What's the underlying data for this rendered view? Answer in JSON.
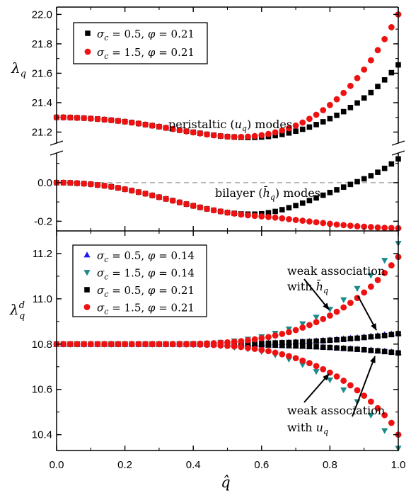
{
  "chart_data": [
    {
      "type": "scatter",
      "panel": "top",
      "ylabel": "λ_q",
      "grid": false,
      "legend_placement": "top-left",
      "y_axis_break": true,
      "x": [
        0.0,
        0.02,
        0.04,
        0.06,
        0.08,
        0.1,
        0.12,
        0.14,
        0.16,
        0.18,
        0.2,
        0.22,
        0.24,
        0.26,
        0.28,
        0.3,
        0.32,
        0.34,
        0.36,
        0.38,
        0.4,
        0.42,
        0.44,
        0.46,
        0.48,
        0.5,
        0.52,
        0.54,
        0.56,
        0.58,
        0.6,
        0.62,
        0.64,
        0.66,
        0.68,
        0.7,
        0.72,
        0.74,
        0.76,
        0.78,
        0.8,
        0.82,
        0.84,
        0.86,
        0.88,
        0.9,
        0.92,
        0.94,
        0.96,
        0.98,
        1.0
      ],
      "upper_segment": {
        "ylim": [
          21.13,
          22.05
        ],
        "ticks": [
          "21.2",
          "21.4",
          "21.6",
          "21.8",
          "22.0"
        ],
        "tick_values": [
          21.2,
          21.4,
          21.6,
          21.8,
          22.0
        ],
        "annotation": "peristaltic (u_q) modes",
        "series": [
          {
            "name": "σ_c = 0.5, φ = 0.21",
            "marker": "square",
            "color": "#000000",
            "values": [
              21.3,
              21.3,
              21.299,
              21.297,
              21.295,
              21.292,
              21.289,
              21.285,
              21.281,
              21.276,
              21.271,
              21.265,
              21.258,
              21.251,
              21.244,
              21.237,
              21.229,
              21.221,
              21.213,
              21.206,
              21.199,
              21.192,
              21.185,
              21.179,
              21.173,
              21.169,
              21.166,
              21.164,
              21.163,
              21.164,
              21.166,
              21.17,
              21.176,
              21.184,
              21.194,
              21.206,
              21.219,
              21.234,
              21.251,
              21.27,
              21.291,
              21.314,
              21.339,
              21.367,
              21.398,
              21.432,
              21.469,
              21.51,
              21.555,
              21.604,
              21.657
            ]
          },
          {
            "name": "σ_c = 1.5, φ = 0.21",
            "marker": "circle",
            "color": "#ee1111",
            "values": [
              21.3,
              21.3,
              21.299,
              21.297,
              21.295,
              21.292,
              21.289,
              21.285,
              21.281,
              21.276,
              21.271,
              21.265,
              21.258,
              21.251,
              21.244,
              21.237,
              21.229,
              21.221,
              21.213,
              21.205,
              21.198,
              21.191,
              21.184,
              21.178,
              21.173,
              21.169,
              21.167,
              21.167,
              21.169,
              21.173,
              21.179,
              21.187,
              21.198,
              21.211,
              21.226,
              21.244,
              21.265,
              21.29,
              21.318,
              21.349,
              21.384,
              21.423,
              21.466,
              21.514,
              21.567,
              21.625,
              21.688,
              21.757,
              21.832,
              21.913,
              22.0
            ]
          }
        ]
      },
      "lower_segment": {
        "ylim": [
          -0.25,
          0.15
        ],
        "ticks": [
          "-0.2",
          "0.0"
        ],
        "tick_values": [
          -0.2,
          0.0
        ],
        "reference_line": 0.0,
        "annotation": "bilayer (h̄_q) modes",
        "series": [
          {
            "name": "σ_c = 0.5, φ = 0.21",
            "marker": "square",
            "color": "#000000",
            "values": [
              0.0,
              0.0,
              -0.001,
              -0.003,
              -0.005,
              -0.008,
              -0.012,
              -0.016,
              -0.021,
              -0.027,
              -0.034,
              -0.041,
              -0.049,
              -0.057,
              -0.066,
              -0.075,
              -0.084,
              -0.093,
              -0.102,
              -0.111,
              -0.12,
              -0.128,
              -0.136,
              -0.143,
              -0.149,
              -0.155,
              -0.159,
              -0.162,
              -0.163,
              -0.163,
              -0.161,
              -0.156,
              -0.149,
              -0.14,
              -0.13,
              -0.119,
              -0.106,
              -0.093,
              -0.079,
              -0.065,
              -0.051,
              -0.037,
              -0.023,
              -0.009,
              0.005,
              0.02,
              0.036,
              0.054,
              0.074,
              0.097,
              0.123
            ]
          },
          {
            "name": "σ_c = 1.5, φ = 0.21",
            "marker": "circle",
            "color": "#ee1111",
            "values": [
              0.0,
              0.0,
              -0.001,
              -0.003,
              -0.005,
              -0.008,
              -0.012,
              -0.016,
              -0.021,
              -0.027,
              -0.034,
              -0.041,
              -0.049,
              -0.057,
              -0.066,
              -0.075,
              -0.084,
              -0.093,
              -0.102,
              -0.111,
              -0.12,
              -0.128,
              -0.136,
              -0.143,
              -0.149,
              -0.155,
              -0.16,
              -0.165,
              -0.169,
              -0.172,
              -0.175,
              -0.178,
              -0.181,
              -0.185,
              -0.189,
              -0.193,
              -0.197,
              -0.201,
              -0.205,
              -0.209,
              -0.213,
              -0.217,
              -0.22,
              -0.223,
              -0.226,
              -0.228,
              -0.23,
              -0.232,
              -0.234,
              -0.235,
              -0.236
            ]
          }
        ]
      }
    },
    {
      "type": "scatter",
      "panel": "bottom",
      "ylabel": "λ_q^d",
      "xlabel": "q̂",
      "grid": false,
      "legend_placement": "top-left",
      "xlim": [
        0.0,
        1.0
      ],
      "xticks": [
        "0.0",
        "0.2",
        "0.4",
        "0.6",
        "0.8",
        "1.0"
      ],
      "xtick_values": [
        0.0,
        0.2,
        0.4,
        0.6,
        0.8,
        1.0
      ],
      "ylim": [
        10.33,
        11.3
      ],
      "yticks": [
        "10.4",
        "10.6",
        "10.8",
        "11.0",
        "11.2"
      ],
      "ytick_values": [
        10.4,
        10.6,
        10.8,
        11.0,
        11.2
      ],
      "annotations": [
        {
          "line1": "weak association",
          "line2_prefix": "with ",
          "line2_symbol": "h̄_q"
        },
        {
          "line1": "weak association",
          "line2_prefix": "with ",
          "line2_symbol": "u_q"
        }
      ],
      "series": [
        {
          "name": "σ_c = 0.5, φ = 0.14",
          "marker": "triangle-up",
          "color": "#1a1aee",
          "x": [
            0.0,
            0.02,
            0.04,
            0.06,
            0.08,
            0.1,
            0.12,
            0.14,
            0.16,
            0.18,
            0.2,
            0.22,
            0.24,
            0.26,
            0.28,
            0.3,
            0.32,
            0.34,
            0.36,
            0.38,
            0.4,
            0.42,
            0.44,
            0.46,
            0.48,
            0.5,
            0.52,
            0.54,
            0.56,
            0.58,
            0.6,
            0.62,
            0.64,
            0.66,
            0.68,
            0.7,
            0.72,
            0.74,
            0.76,
            0.78,
            0.8,
            0.82,
            0.84,
            0.86,
            0.88,
            0.9,
            0.92,
            0.94,
            0.96,
            0.98,
            1.0
          ],
          "upper_branch": [
            10.8,
            10.8,
            10.8,
            10.8,
            10.8,
            10.8,
            10.8,
            10.8,
            10.8,
            10.8,
            10.8,
            10.8,
            10.8,
            10.8,
            10.8,
            10.8,
            10.8,
            10.8,
            10.8,
            10.8,
            10.8,
            10.8,
            10.8,
            10.8,
            10.8,
            10.801,
            10.801,
            10.802,
            10.802,
            10.803,
            10.804,
            10.805,
            10.806,
            10.807,
            10.808,
            10.81,
            10.811,
            10.813,
            10.815,
            10.817,
            10.819,
            10.821,
            10.824,
            10.826,
            10.829,
            10.832,
            10.835,
            10.838,
            10.842,
            10.845,
            10.849
          ],
          "lower_branch": [
            10.8,
            10.8,
            10.8,
            10.8,
            10.8,
            10.8,
            10.8,
            10.8,
            10.8,
            10.8,
            10.8,
            10.8,
            10.8,
            10.8,
            10.8,
            10.8,
            10.8,
            10.8,
            10.8,
            10.8,
            10.8,
            10.8,
            10.8,
            10.8,
            10.8,
            10.8,
            10.799,
            10.799,
            10.798,
            10.798,
            10.797,
            10.796,
            10.795,
            10.794,
            10.793,
            10.792,
            10.791,
            10.789,
            10.788,
            10.787,
            10.785,
            10.783,
            10.782,
            10.78,
            10.778,
            10.776,
            10.774,
            10.771,
            10.769,
            10.766,
            10.764
          ]
        },
        {
          "name": "σ_c = 1.5, φ = 0.14",
          "marker": "triangle-down",
          "color": "#1a8a8a",
          "x": [
            0.0,
            0.04,
            0.08,
            0.12,
            0.16,
            0.2,
            0.24,
            0.28,
            0.32,
            0.36,
            0.4,
            0.44,
            0.48,
            0.52,
            0.56,
            0.6,
            0.64,
            0.68,
            0.72,
            0.76,
            0.8,
            0.84,
            0.88,
            0.92,
            0.96,
            1.0
          ],
          "upper_branch": [
            10.8,
            10.8,
            10.8,
            10.8,
            10.8,
            10.8,
            10.8,
            10.8,
            10.8,
            10.801,
            10.802,
            10.804,
            10.808,
            10.814,
            10.822,
            10.833,
            10.848,
            10.867,
            10.89,
            10.919,
            10.954,
            10.996,
            11.046,
            11.104,
            11.17,
            11.245
          ],
          "lower_branch": [
            10.8,
            10.8,
            10.8,
            10.8,
            10.8,
            10.8,
            10.8,
            10.8,
            10.8,
            10.799,
            10.798,
            10.796,
            10.792,
            10.786,
            10.778,
            10.767,
            10.752,
            10.733,
            10.709,
            10.679,
            10.642,
            10.598,
            10.546,
            10.486,
            10.418,
            10.34
          ]
        },
        {
          "name": "σ_c = 0.5, φ = 0.21",
          "marker": "square",
          "color": "#000000",
          "x": [
            0.0,
            0.02,
            0.04,
            0.06,
            0.08,
            0.1,
            0.12,
            0.14,
            0.16,
            0.18,
            0.2,
            0.22,
            0.24,
            0.26,
            0.28,
            0.3,
            0.32,
            0.34,
            0.36,
            0.38,
            0.4,
            0.42,
            0.44,
            0.46,
            0.48,
            0.5,
            0.52,
            0.54,
            0.56,
            0.58,
            0.6,
            0.62,
            0.64,
            0.66,
            0.68,
            0.7,
            0.72,
            0.74,
            0.76,
            0.78,
            0.8,
            0.82,
            0.84,
            0.86,
            0.88,
            0.9,
            0.92,
            0.94,
            0.96,
            0.98,
            1.0
          ],
          "upper_branch": [
            10.8,
            10.8,
            10.8,
            10.8,
            10.8,
            10.8,
            10.8,
            10.8,
            10.8,
            10.8,
            10.8,
            10.8,
            10.8,
            10.8,
            10.8,
            10.8,
            10.8,
            10.8,
            10.8,
            10.8,
            10.8,
            10.8,
            10.8,
            10.8,
            10.8,
            10.8,
            10.801,
            10.801,
            10.802,
            10.802,
            10.803,
            10.804,
            10.805,
            10.806,
            10.807,
            10.808,
            10.81,
            10.811,
            10.813,
            10.815,
            10.817,
            10.819,
            10.821,
            10.824,
            10.826,
            10.829,
            10.832,
            10.835,
            10.838,
            10.842,
            10.846
          ],
          "lower_branch": [
            10.8,
            10.8,
            10.8,
            10.8,
            10.8,
            10.8,
            10.8,
            10.8,
            10.8,
            10.8,
            10.8,
            10.8,
            10.8,
            10.8,
            10.8,
            10.8,
            10.8,
            10.8,
            10.8,
            10.8,
            10.8,
            10.8,
            10.8,
            10.8,
            10.8,
            10.8,
            10.799,
            10.799,
            10.798,
            10.798,
            10.797,
            10.796,
            10.795,
            10.794,
            10.793,
            10.792,
            10.791,
            10.789,
            10.788,
            10.786,
            10.785,
            10.783,
            10.781,
            10.779,
            10.777,
            10.775,
            10.772,
            10.77,
            10.767,
            10.764,
            10.761
          ]
        },
        {
          "name": "σ_c = 1.5, φ = 0.21",
          "marker": "circle",
          "color": "#ee1111",
          "x": [
            0.0,
            0.02,
            0.04,
            0.06,
            0.08,
            0.1,
            0.12,
            0.14,
            0.16,
            0.18,
            0.2,
            0.22,
            0.24,
            0.26,
            0.28,
            0.3,
            0.32,
            0.34,
            0.36,
            0.38,
            0.4,
            0.42,
            0.44,
            0.46,
            0.48,
            0.5,
            0.52,
            0.54,
            0.56,
            0.58,
            0.6,
            0.62,
            0.64,
            0.66,
            0.68,
            0.7,
            0.72,
            0.74,
            0.76,
            0.78,
            0.8,
            0.82,
            0.84,
            0.86,
            0.88,
            0.9,
            0.92,
            0.94,
            0.96,
            0.98,
            1.0
          ],
          "upper_branch": [
            10.8,
            10.8,
            10.8,
            10.8,
            10.8,
            10.8,
            10.8,
            10.8,
            10.8,
            10.8,
            10.8,
            10.8,
            10.8,
            10.8,
            10.8,
            10.8,
            10.8,
            10.8,
            10.801,
            10.801,
            10.801,
            10.802,
            10.803,
            10.804,
            10.806,
            10.808,
            10.81,
            10.813,
            10.817,
            10.821,
            10.826,
            10.831,
            10.838,
            10.845,
            10.853,
            10.862,
            10.873,
            10.884,
            10.897,
            10.911,
            10.926,
            10.943,
            10.962,
            10.982,
            11.004,
            11.028,
            11.054,
            11.083,
            11.114,
            11.148,
            11.185
          ],
          "lower_branch": [
            10.8,
            10.8,
            10.8,
            10.8,
            10.8,
            10.8,
            10.8,
            10.8,
            10.8,
            10.8,
            10.8,
            10.8,
            10.8,
            10.8,
            10.8,
            10.8,
            10.8,
            10.8,
            10.799,
            10.799,
            10.799,
            10.798,
            10.797,
            10.796,
            10.794,
            10.792,
            10.79,
            10.787,
            10.783,
            10.779,
            10.774,
            10.769,
            10.762,
            10.755,
            10.747,
            10.738,
            10.727,
            10.716,
            10.703,
            10.689,
            10.674,
            10.657,
            10.638,
            10.618,
            10.596,
            10.572,
            10.546,
            10.517,
            10.486,
            10.452,
            10.4
          ]
        }
      ]
    }
  ]
}
